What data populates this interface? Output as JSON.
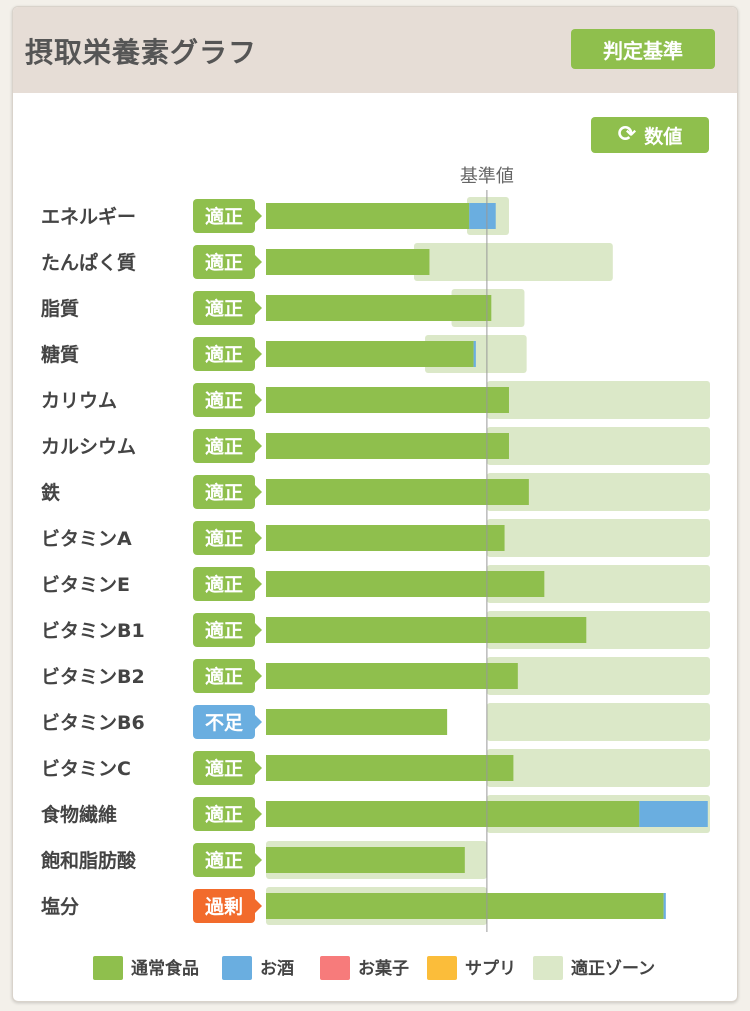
{
  "header": {
    "title": "摂取栄養素グラフ",
    "criteria_button": "判定基準"
  },
  "values_button": "数値",
  "chart_data": {
    "type": "bar",
    "orientation": "horizontal",
    "stacked": true,
    "baseline_label": "基準値",
    "baseline_value": 100,
    "xlim": [
      0,
      201
    ],
    "categories": [
      "エネルギー",
      "たんぱく質",
      "脂質",
      "糖質",
      "カリウム",
      "カルシウム",
      "鉄",
      "ビタミンA",
      "ビタミンE",
      "ビタミンB1",
      "ビタミンB2",
      "ビタミンB6",
      "ビタミンC",
      "食物繊維",
      "飽和脂肪酸",
      "塩分"
    ],
    "status": [
      "適正",
      "適正",
      "適正",
      "適正",
      "適正",
      "適正",
      "適正",
      "適正",
      "適正",
      "適正",
      "適正",
      "不足",
      "適正",
      "適正",
      "適正",
      "過剰"
    ],
    "status_colors": {
      "適正": "#8fbf4d",
      "不足": "#6aaee0",
      "過剰": "#f26b2c"
    },
    "series": [
      {
        "name": "通常食品",
        "color": "#8fbf4d",
        "values": [
          92,
          74,
          102,
          94,
          110,
          110,
          119,
          108,
          126,
          145,
          114,
          82,
          112,
          169,
          90,
          180
        ]
      },
      {
        "name": "お酒",
        "color": "#6aaee0",
        "values": [
          12,
          0,
          0,
          1,
          0,
          0,
          0,
          0,
          0,
          0,
          0,
          0,
          0,
          31,
          0,
          1
        ]
      },
      {
        "name": "お菓子",
        "color": "#f77b7b",
        "values": [
          0,
          0,
          0,
          0,
          0,
          0,
          0,
          0,
          0,
          0,
          0,
          0,
          0,
          0,
          0,
          0
        ]
      },
      {
        "name": "サプリ",
        "color": "#fbbd3a",
        "values": [
          0,
          0,
          0,
          0,
          0,
          0,
          0,
          0,
          0,
          0,
          0,
          0,
          0,
          0,
          0,
          0
        ]
      }
    ],
    "optimal_zone_name": "適正ゾーン",
    "optimal_zone_color": "#dbe8c8",
    "optimal_zone": [
      [
        91,
        110
      ],
      [
        67,
        157
      ],
      [
        84,
        117
      ],
      [
        72,
        118
      ],
      [
        100,
        201
      ],
      [
        100,
        201
      ],
      [
        100,
        201
      ],
      [
        100,
        201
      ],
      [
        100,
        201
      ],
      [
        100,
        201
      ],
      [
        100,
        201
      ],
      [
        100,
        201
      ],
      [
        100,
        201
      ],
      [
        100,
        201
      ],
      [
        0,
        100
      ],
      [
        0,
        100
      ]
    ],
    "legend": [
      "通常食品",
      "お酒",
      "お菓子",
      "サプリ",
      "適正ゾーン"
    ],
    "legend_placement": "bottom"
  }
}
